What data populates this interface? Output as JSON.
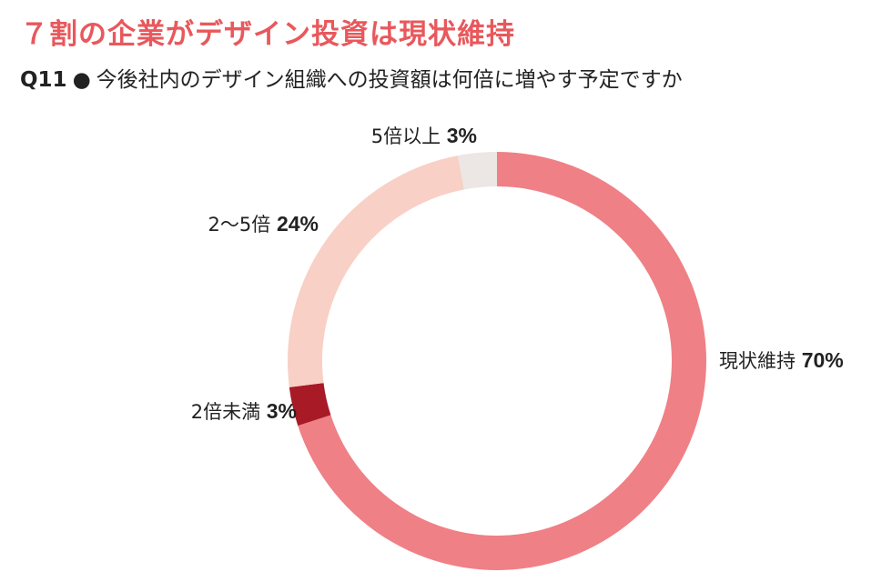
{
  "title": "７割の企業がデザイン投資は現状維持",
  "subtitle": {
    "question": "Q11",
    "bullet": "●",
    "text": "今後社内のデザイン組織への投資額は何倍に増やす予定ですか"
  },
  "chart_data": {
    "type": "pie",
    "style": "donut",
    "slices": [
      {
        "label": "現状維持",
        "value": 70,
        "pct_label": "70%",
        "color": "#ef8086"
      },
      {
        "label": "2倍未満",
        "value": 3,
        "pct_label": "3%",
        "color": "#a71a26"
      },
      {
        "label": "2〜5倍",
        "value": 24,
        "pct_label": "24%",
        "color": "#f8d0c6"
      },
      {
        "label": "5倍以上",
        "value": 3,
        "pct_label": "3%",
        "color": "#ece6e4"
      }
    ]
  }
}
